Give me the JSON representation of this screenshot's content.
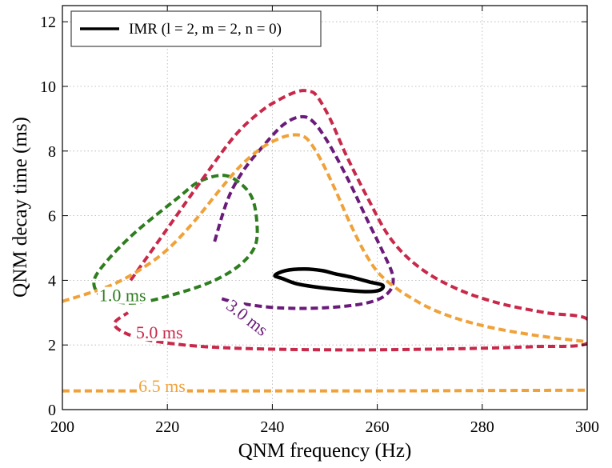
{
  "chart_data": {
    "type": "line",
    "title": "",
    "xlabel": "QNM frequency (Hz)",
    "ylabel": "QNM decay time (ms)",
    "xlim": [
      200,
      300
    ],
    "ylim": [
      0,
      12.5
    ],
    "xticks": [
      200,
      220,
      240,
      260,
      280,
      300
    ],
    "yticks": [
      0,
      2,
      4,
      6,
      8,
      10,
      12
    ],
    "xtick_labels": [
      "200",
      "220",
      "240",
      "260",
      "280",
      "300"
    ],
    "ytick_labels": [
      "0",
      "2",
      "4",
      "6",
      "8",
      "10",
      "12"
    ],
    "grid": true,
    "legend": {
      "position": "top-left",
      "entries": [
        {
          "label": "IMR (l = 2, m = 2, n = 0)",
          "color": "#000000",
          "style": "solid"
        }
      ]
    },
    "series": [
      {
        "name": "1.0 ms",
        "color": "#2e7d1f",
        "style": "dashed",
        "closed": true,
        "x": [
          230.5,
          233.5,
          236.0,
          237.0,
          236.8,
          234.0,
          229.0,
          222.0,
          214.0,
          208.0,
          206.0,
          208.5,
          214.0,
          222.0,
          226.0
        ],
        "y": [
          7.25,
          7.05,
          6.6,
          5.9,
          5.1,
          4.5,
          4.0,
          3.6,
          3.3,
          3.45,
          3.95,
          4.6,
          5.5,
          6.55,
          7.05
        ]
      },
      {
        "name": "3.0 ms",
        "color": "#6a1b7a",
        "style": "dashed",
        "closed": false,
        "x": [
          229.0,
          231.5,
          234.5,
          238.5,
          242.0,
          245.0,
          247.5,
          250.5,
          254.5,
          258.0,
          261.0,
          263.0,
          262.0,
          258.0,
          250.0,
          241.0,
          233.5,
          230.0
        ],
        "y": [
          5.2,
          6.5,
          7.4,
          8.2,
          8.8,
          9.05,
          8.95,
          8.3,
          7.1,
          5.9,
          4.9,
          4.1,
          3.6,
          3.3,
          3.15,
          3.15,
          3.3,
          3.45
        ]
      },
      {
        "name": "5.0 ms",
        "color": "#c8294a",
        "style": "dashed",
        "closed": false,
        "x": [
          213.0,
          220.0,
          227.0,
          233.0,
          238.0,
          242.0,
          245.0,
          247.0,
          248.5,
          251.0,
          254.0,
          258.0,
          262.5,
          268.0,
          275.0,
          283.0,
          292.0,
          300.0,
          300.0,
          290.0,
          280.0,
          270.0,
          260.0,
          250.0,
          240.0,
          230.0,
          222.0,
          215.0,
          211.0,
          210.0,
          212.5
        ],
        "y": [
          4.0,
          5.6,
          7.2,
          8.5,
          9.25,
          9.65,
          9.85,
          9.85,
          9.7,
          9.0,
          7.9,
          6.6,
          5.3,
          4.4,
          3.75,
          3.3,
          3.0,
          2.8,
          2.05,
          1.95,
          1.9,
          1.87,
          1.85,
          1.85,
          1.87,
          1.92,
          2.02,
          2.2,
          2.45,
          2.7,
          3.0
        ]
      },
      {
        "name": "6.5 ms",
        "color": "#f0a23a",
        "style": "dashed",
        "closed": false,
        "x": [
          200.0,
          205.0,
          210.0,
          215.0,
          220.0,
          225.0,
          230.0,
          234.0,
          238.0,
          241.5,
          244.0,
          246.0,
          247.5,
          249.5,
          252.0,
          255.0,
          258.0,
          261.0,
          266.0,
          272.0,
          280.0,
          290.0,
          300.0
        ],
        "y": [
          3.35,
          3.6,
          3.9,
          4.35,
          4.95,
          5.8,
          6.8,
          7.55,
          8.1,
          8.4,
          8.5,
          8.45,
          8.2,
          7.65,
          6.8,
          5.7,
          4.75,
          4.1,
          3.5,
          3.0,
          2.6,
          2.3,
          2.1
        ]
      },
      {
        "name": "6.5 ms floor",
        "color": "#f0a23a",
        "style": "dashed",
        "closed": false,
        "x": [
          200,
          230,
          260,
          300
        ],
        "y": [
          0.58,
          0.58,
          0.58,
          0.6
        ]
      },
      {
        "name": "IMR (l = 2, m = 2, n = 0)",
        "color": "#000000",
        "style": "solid",
        "closed": true,
        "x": [
          240.5,
          242.5,
          246.0,
          249.5,
          252.0,
          255.0,
          258.5,
          261.0,
          260.5,
          258.0,
          253.5,
          248.0,
          244.5,
          242.0
        ],
        "y": [
          4.15,
          4.3,
          4.35,
          4.3,
          4.2,
          4.1,
          3.95,
          3.85,
          3.7,
          3.65,
          3.7,
          3.8,
          3.9,
          4.05
        ]
      }
    ],
    "annotations": [
      {
        "text": "1.0 ms",
        "x": 207.0,
        "y": 3.35,
        "rotation": 0,
        "color": "#2e7d1f"
      },
      {
        "text": "3.0 ms",
        "x": 231.0,
        "y": 3.15,
        "rotation": 38,
        "color": "#6a1b7a"
      },
      {
        "text": "5.0 ms",
        "x": 214.0,
        "y": 2.2,
        "rotation": 0,
        "color": "#c8294a"
      },
      {
        "text": "6.5 ms",
        "x": 214.5,
        "y": 0.55,
        "rotation": 0,
        "color": "#f0a23a"
      }
    ]
  }
}
